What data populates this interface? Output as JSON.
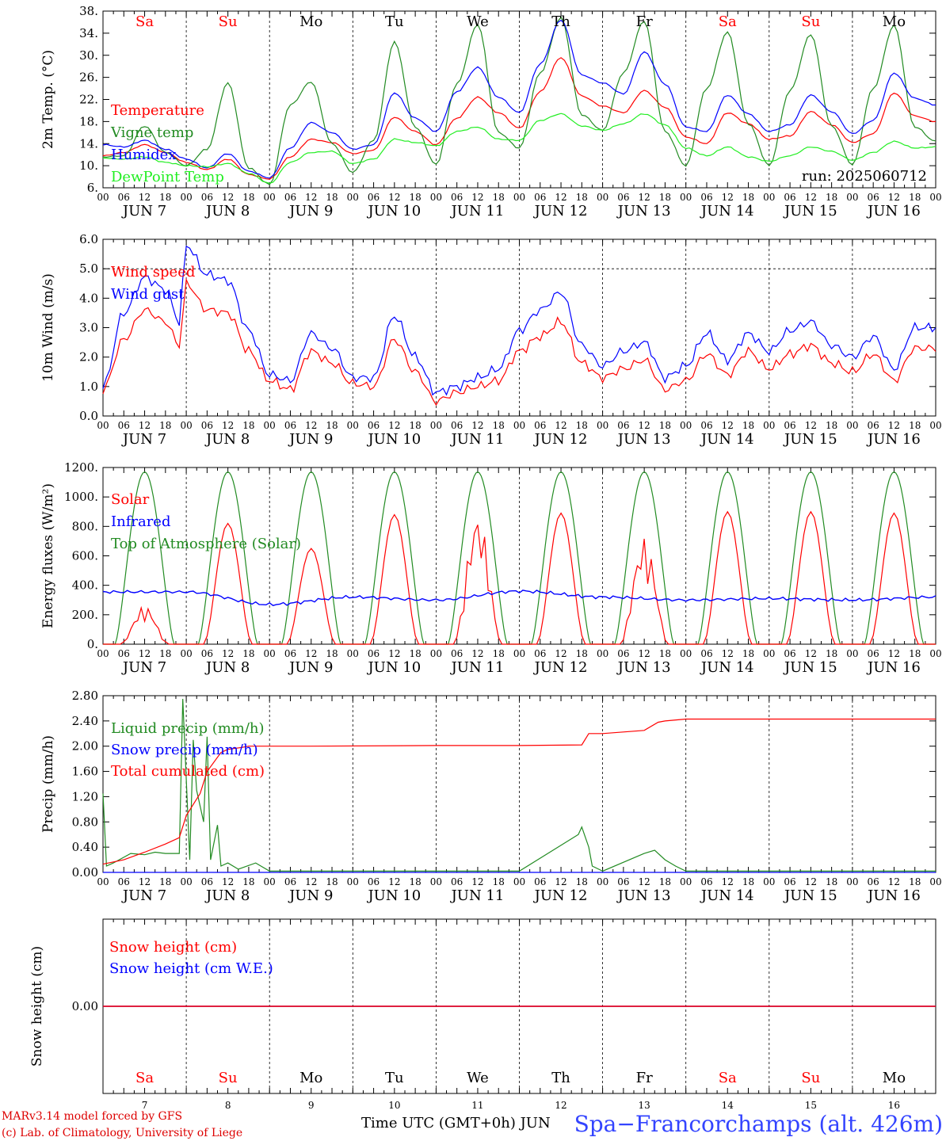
{
  "colors": {
    "red": "#ff0000",
    "green": "#228b22",
    "blue": "#0000ff",
    "light_green": "#22ee22",
    "title_blue": "#3344ff",
    "credit_red": "#dd0000"
  },
  "footer": {
    "credit_line1": "MARv3.14 model forced by GFS",
    "credit_line2": "(c) Lab. of Climatology, University of Liege",
    "time_label": "Time UTC (GMT+0h) JUN",
    "station": "Spa−Francorchamps (alt. 426m)"
  },
  "chart_data": [
    {
      "type": "line",
      "ylabel": "2m Temp. (°C)",
      "ylim": [
        6,
        38
      ],
      "yticks": [
        "6.",
        "10.",
        "14.",
        "18.",
        "22.",
        "26.",
        "30.",
        "34.",
        "38."
      ],
      "x_hour_ticks": [
        "00",
        "06",
        "12",
        "18"
      ],
      "x_days": [
        "JUN  7",
        "JUN  8",
        "JUN  9",
        "JUN 10",
        "JUN 11",
        "JUN 12",
        "JUN 13",
        "JUN 14",
        "JUN 15",
        "JUN 16"
      ],
      "weekdays": [
        {
          "label": "Sa",
          "weekend": true
        },
        {
          "label": "Su",
          "weekend": true
        },
        {
          "label": "Mo",
          "weekend": false
        },
        {
          "label": "Tu",
          "weekend": false
        },
        {
          "label": "We",
          "weekend": false
        },
        {
          "label": "Th",
          "weekend": false
        },
        {
          "label": "Fr",
          "weekend": false
        },
        {
          "label": "Sa",
          "weekend": true
        },
        {
          "label": "Su",
          "weekend": true
        },
        {
          "label": "Mo",
          "weekend": false
        }
      ],
      "annotation": "run: 2025060712",
      "series": [
        {
          "name": "Temperature",
          "color": "#ff0000",
          "x": [
            0,
            6,
            12,
            18,
            24,
            30,
            36,
            42,
            48,
            54,
            60,
            66,
            72,
            78,
            84,
            90,
            96,
            102,
            108,
            114,
            120,
            126,
            132,
            138,
            144,
            150,
            156,
            162,
            168,
            174,
            180,
            186,
            192,
            198,
            204,
            210,
            216,
            222,
            228,
            234,
            240
          ],
          "values": [
            11.8,
            12.4,
            13.8,
            12.4,
            10.6,
            9.3,
            11.2,
            8.4,
            7.6,
            11.6,
            14.8,
            14.2,
            12.2,
            12.8,
            18.8,
            16.2,
            13.8,
            18.6,
            22.4,
            19.6,
            16.8,
            23.4,
            29.6,
            22.6,
            20.8,
            19.6,
            23.6,
            20.6,
            15.2,
            14.0,
            19.6,
            17.6,
            14.8,
            15.4,
            19.8,
            17.4,
            14.2,
            15.8,
            23.2,
            19.0,
            18.0
          ]
        },
        {
          "name": "Vigne temp",
          "color": "#228b22",
          "x": [
            0,
            6,
            12,
            18,
            24,
            30,
            36,
            42,
            48,
            54,
            60,
            66,
            72,
            78,
            84,
            90,
            96,
            102,
            108,
            114,
            120,
            126,
            132,
            138,
            144,
            150,
            156,
            162,
            168,
            174,
            180,
            186,
            192,
            198,
            204,
            210,
            216,
            222,
            228,
            234,
            240
          ],
          "values": [
            11.6,
            11.8,
            17.2,
            12.4,
            10.0,
            13.0,
            25.0,
            9.6,
            6.6,
            21.0,
            25.2,
            14.0,
            8.8,
            14.6,
            32.4,
            17.0,
            10.2,
            24.8,
            35.6,
            16.0,
            13.2,
            26.8,
            36.8,
            19.2,
            16.4,
            26.8,
            36.2,
            16.2,
            10.0,
            24.0,
            34.2,
            17.6,
            10.0,
            23.6,
            33.8,
            17.2,
            10.2,
            24.0,
            35.4,
            17.0,
            14.4
          ]
        },
        {
          "name": "Humidex",
          "color": "#0000ff",
          "x": [
            0,
            6,
            12,
            18,
            24,
            30,
            36,
            42,
            48,
            54,
            60,
            66,
            72,
            78,
            84,
            90,
            96,
            102,
            108,
            114,
            120,
            126,
            132,
            138,
            144,
            150,
            156,
            162,
            168,
            174,
            180,
            186,
            192,
            198,
            204,
            210,
            216,
            222,
            228,
            234,
            240
          ],
          "values": [
            13.8,
            13.4,
            14.6,
            13.0,
            11.2,
            9.6,
            12.2,
            9.0,
            7.8,
            13.2,
            17.8,
            16.0,
            13.0,
            13.8,
            23.2,
            18.6,
            16.2,
            23.4,
            27.8,
            22.4,
            19.6,
            28.4,
            36.4,
            26.4,
            25.0,
            23.0,
            30.6,
            24.8,
            17.0,
            16.2,
            22.8,
            19.4,
            16.2,
            17.4,
            22.8,
            19.8,
            15.8,
            18.2,
            26.8,
            22.2,
            21.0
          ]
        },
        {
          "name": "DewPoint Temp",
          "color": "#22ee22",
          "x": [
            0,
            6,
            12,
            18,
            24,
            30,
            36,
            42,
            48,
            54,
            60,
            66,
            72,
            78,
            84,
            90,
            96,
            102,
            108,
            114,
            120,
            126,
            132,
            138,
            144,
            150,
            156,
            162,
            168,
            174,
            180,
            186,
            192,
            198,
            204,
            210,
            216,
            222,
            228,
            234,
            240
          ],
          "values": [
            11.4,
            11.2,
            11.6,
            10.6,
            10.0,
            9.8,
            10.4,
            8.6,
            6.8,
            10.6,
            12.4,
            12.6,
            10.4,
            11.2,
            14.8,
            14.2,
            13.6,
            16.2,
            17.0,
            14.8,
            14.6,
            18.2,
            19.4,
            17.2,
            16.4,
            17.6,
            19.4,
            17.4,
            13.2,
            11.8,
            13.4,
            11.6,
            10.8,
            11.8,
            13.4,
            12.6,
            11.0,
            12.4,
            14.4,
            13.2,
            13.4
          ]
        }
      ]
    },
    {
      "type": "line",
      "ylabel": "10m Wind (m/s)",
      "ylim": [
        0,
        6
      ],
      "yticks": [
        "0.0",
        "1.0",
        "2.0",
        "3.0",
        "4.0",
        "5.0",
        "6.0"
      ],
      "reference_line": 5.0,
      "series": [
        {
          "name": "Wind speed",
          "color": "#ff0000",
          "x": [
            0,
            6,
            12,
            18,
            22,
            24,
            30,
            36,
            42,
            48,
            54,
            60,
            66,
            72,
            78,
            84,
            90,
            96,
            102,
            108,
            114,
            120,
            126,
            132,
            138,
            144,
            150,
            156,
            162,
            168,
            174,
            180,
            186,
            192,
            198,
            204,
            210,
            216,
            222,
            228,
            234,
            240
          ],
          "values": [
            0.9,
            2.6,
            3.6,
            3.2,
            2.4,
            4.5,
            3.6,
            3.5,
            2.2,
            1.2,
            0.9,
            2.2,
            1.8,
            1.1,
            1.0,
            2.6,
            1.5,
            0.5,
            0.8,
            1.0,
            1.2,
            2.2,
            2.7,
            3.2,
            1.8,
            1.3,
            1.6,
            1.9,
            0.9,
            1.2,
            2.1,
            1.4,
            2.2,
            1.6,
            2.1,
            2.4,
            1.8,
            1.5,
            2.1,
            1.2,
            2.3,
            2.3
          ]
        },
        {
          "name": "Wind gust",
          "color": "#0000ff",
          "x": [
            0,
            6,
            12,
            18,
            22,
            24,
            30,
            36,
            42,
            48,
            54,
            60,
            66,
            72,
            78,
            84,
            90,
            96,
            102,
            108,
            114,
            120,
            126,
            132,
            138,
            144,
            150,
            156,
            162,
            168,
            174,
            180,
            186,
            192,
            198,
            204,
            210,
            216,
            222,
            228,
            234,
            240
          ],
          "values": [
            1.0,
            3.5,
            4.7,
            4.3,
            3.2,
            5.8,
            4.8,
            4.6,
            2.9,
            1.4,
            1.2,
            2.8,
            2.3,
            1.3,
            1.3,
            3.4,
            2.0,
            0.8,
            1.0,
            1.3,
            1.6,
            2.9,
            3.6,
            4.2,
            2.4,
            1.7,
            2.2,
            2.5,
            1.3,
            1.7,
            2.8,
            1.9,
            2.8,
            2.2,
            2.9,
            3.2,
            2.4,
            2.0,
            2.7,
            1.6,
            3.0,
            3.0
          ]
        }
      ]
    },
    {
      "type": "line",
      "ylabel": "Energy fluxes (W/m²)",
      "ylim": [
        0,
        1200
      ],
      "yticks": [
        "0.",
        "200.",
        "400.",
        "600.",
        "800.",
        "1000.",
        "1200."
      ],
      "series": [
        {
          "name": "Solar",
          "color": "#ff0000",
          "peaks": [
            260,
            820,
            650,
            880,
            880,
            890,
            720,
            900,
            900,
            890
          ]
        },
        {
          "name": "Infrared",
          "color": "#0000ff",
          "x": [
            0,
            24,
            48,
            72,
            96,
            120,
            144,
            168,
            192,
            216,
            240
          ],
          "values": [
            355,
            355,
            270,
            320,
            300,
            360,
            320,
            300,
            310,
            300,
            320
          ]
        },
        {
          "name": "Top of Atmosphere (Solar)",
          "color": "#228b22",
          "peak": 1170
        }
      ]
    },
    {
      "type": "line",
      "ylabel": "Precip (mm/h)",
      "ylim": [
        0,
        2.8
      ],
      "yticks": [
        "0.00",
        "0.40",
        "0.80",
        "1.20",
        "1.60",
        "2.00",
        "2.40",
        "2.80"
      ],
      "series": [
        {
          "name": "Liquid precip (mm/h)",
          "color": "#228b22",
          "x": [
            0,
            1,
            3,
            8,
            12,
            15,
            18,
            22,
            23,
            25,
            26,
            27,
            29,
            30,
            31,
            33,
            34,
            36,
            39,
            44,
            48,
            60,
            120,
            137,
            138,
            140,
            141,
            144,
            156,
            159,
            162,
            165,
            168,
            240
          ],
          "values": [
            1.25,
            0.1,
            0.15,
            0.3,
            0.28,
            0.32,
            0.3,
            0.3,
            2.75,
            0.2,
            2.1,
            1.3,
            0.8,
            2.15,
            0.2,
            0.75,
            0.1,
            0.15,
            0.05,
            0.15,
            0.02,
            0.02,
            0.02,
            0.6,
            0.72,
            0.4,
            0.1,
            0.02,
            0.3,
            0.35,
            0.2,
            0.1,
            0.02,
            0.02
          ]
        },
        {
          "name": "Snow precip (mm/h)",
          "color": "#0000ff",
          "x": [
            0,
            240
          ],
          "values": [
            0,
            0
          ]
        },
        {
          "name": "Total cumulated (cm)",
          "color": "#ff0000",
          "x": [
            0,
            6,
            12,
            18,
            22,
            24,
            28,
            30,
            34,
            36,
            40,
            42,
            48,
            60,
            96,
            120,
            138,
            140,
            144,
            156,
            160,
            162,
            168,
            240
          ],
          "values": [
            0.13,
            0.2,
            0.32,
            0.45,
            0.55,
            0.9,
            1.25,
            1.6,
            1.9,
            1.95,
            1.98,
            2.0,
            2.0,
            2.0,
            2.01,
            2.01,
            2.02,
            2.2,
            2.2,
            2.25,
            2.38,
            2.4,
            2.43,
            2.43
          ]
        }
      ]
    },
    {
      "type": "line",
      "ylabel": "Snow height (cm)",
      "yticks": [
        "0.00"
      ],
      "day_numbers": [
        "7",
        "8",
        "9",
        "10",
        "11",
        "12",
        "13",
        "14",
        "15",
        "16"
      ],
      "series": [
        {
          "name": "Snow height (cm)",
          "color": "#ff0000",
          "x": [
            0,
            240
          ],
          "values": [
            0,
            0
          ]
        },
        {
          "name": "Snow height (cm W.E.)",
          "color": "#0000ff",
          "x": [
            0,
            240
          ],
          "values": [
            0,
            0
          ]
        }
      ]
    }
  ]
}
